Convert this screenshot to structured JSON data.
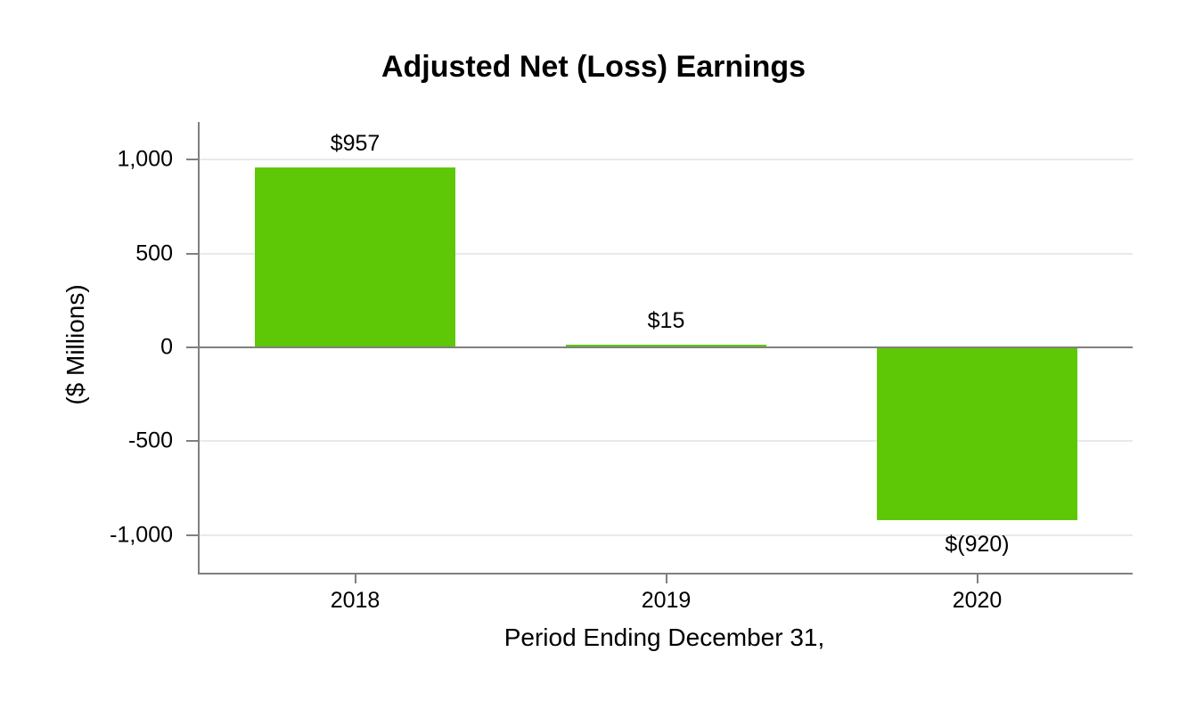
{
  "figure": {
    "background": "#ffffff"
  },
  "chart_data": {
    "type": "bar",
    "title": "Adjusted Net (Loss) Earnings",
    "xlabel": "Period Ending December 31,",
    "ylabel": "($ Millions)",
    "categories": [
      "2018",
      "2019",
      "2020"
    ],
    "values": [
      957,
      15,
      -920
    ],
    "value_labels": [
      "$957",
      "$15",
      "$(920)"
    ],
    "y_ticks": [
      1000,
      500,
      0,
      -500,
      -1000
    ],
    "y_tick_labels": [
      "1,000",
      "500",
      "0",
      "-500",
      "-1,000"
    ],
    "ylim": [
      -1200,
      1200
    ],
    "grid": "horizontal",
    "legend": "none",
    "bar_color": "#5ec806",
    "axis_color": "#808080",
    "gridline_color": "#e9e9e9",
    "text_color": "#000000"
  }
}
